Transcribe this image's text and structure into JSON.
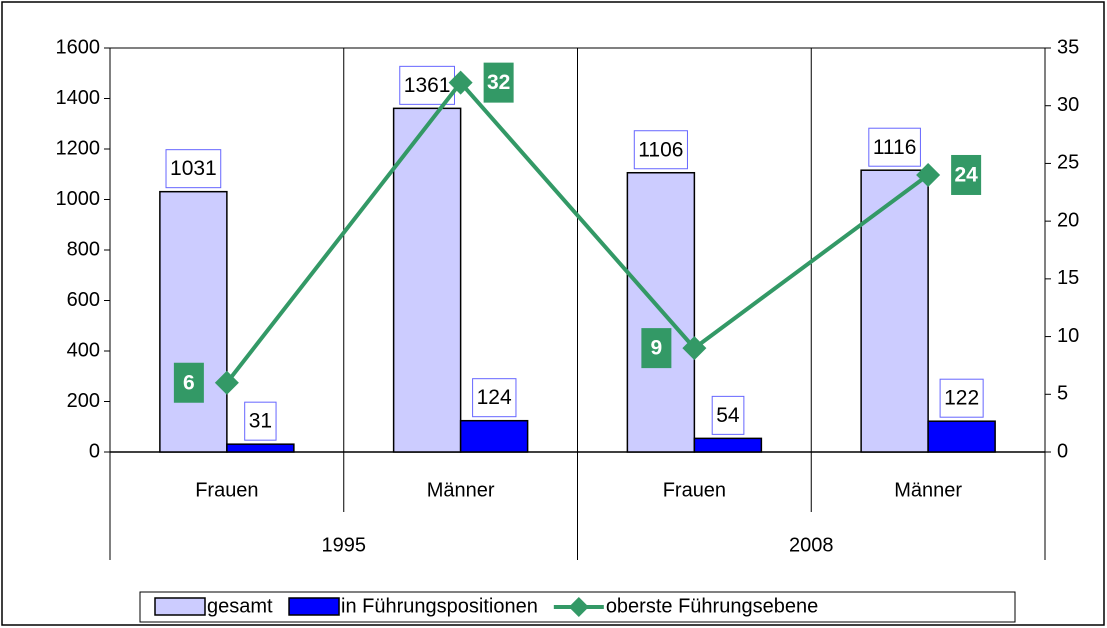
{
  "chart_data": {
    "type": "bar-line",
    "categories": [
      "Frauen",
      "Männer",
      "Frauen",
      "Männer"
    ],
    "category_groups": [
      "1995",
      "2008"
    ],
    "series": [
      {
        "name": "gesamt",
        "type": "bar",
        "color": "#ccccff",
        "values": [
          1031,
          1361,
          1106,
          1116
        ]
      },
      {
        "name": "in Führungspositionen",
        "type": "bar",
        "color": "#0000ff",
        "values": [
          31,
          124,
          54,
          122
        ]
      },
      {
        "name": "oberste Führungsebene",
        "type": "line",
        "axis": "y2",
        "color": "#339966",
        "values": [
          6,
          32,
          9,
          24
        ]
      }
    ],
    "ylim": [
      0,
      1600
    ],
    "yticks": [
      0,
      200,
      400,
      600,
      800,
      1000,
      1200,
      1400,
      1600
    ],
    "y2lim": [
      0,
      35
    ],
    "y2ticks": [
      0,
      5,
      10,
      15,
      20,
      25,
      30,
      35
    ],
    "legend": "bottom",
    "grid": false
  }
}
